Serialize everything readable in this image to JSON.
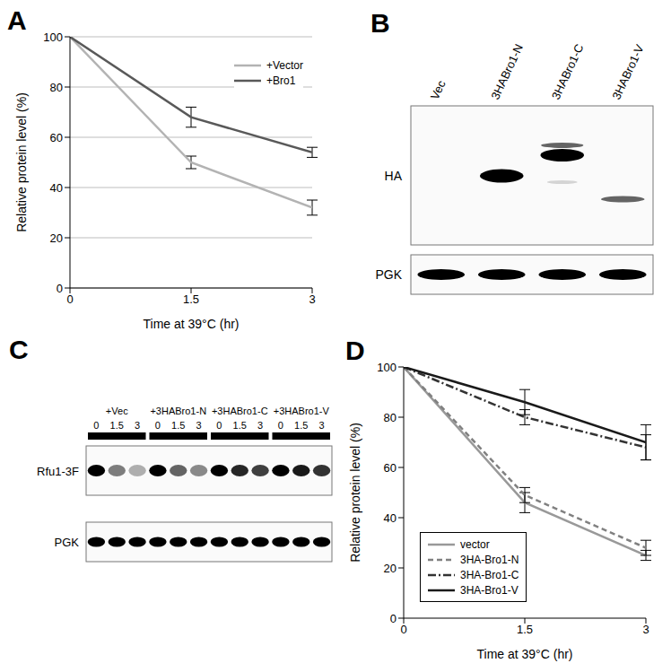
{
  "chart_data": [
    {
      "title": "A",
      "type": "line",
      "x": [
        0,
        1.5,
        3
      ],
      "xlim": [
        0,
        3
      ],
      "xticks": [
        0,
        1.5,
        3
      ],
      "ylim": [
        0,
        100
      ],
      "yticks": [
        0,
        20,
        40,
        60,
        80,
        100
      ],
      "grid": true,
      "x_label": "Time at 39°C (hr)",
      "y_label": "Relative protein level (%)",
      "legend": "upper right",
      "series": [
        {
          "name": "+Vector",
          "color": "#b3b3b3",
          "line_style": "solid",
          "values": [
            100,
            50,
            32
          ],
          "errors": [
            0,
            2.5,
            3
          ]
        },
        {
          "name": "+Bro1",
          "color": "#595959",
          "line_style": "solid",
          "values": [
            100,
            68,
            54
          ],
          "errors": [
            0,
            4,
            2
          ]
        }
      ]
    },
    {
      "title": "D",
      "type": "line",
      "x": [
        0,
        1.5,
        3
      ],
      "xlim": [
        0,
        3
      ],
      "xticks": [
        0,
        1.5,
        3
      ],
      "ylim": [
        0,
        100
      ],
      "yticks": [
        0,
        20,
        40,
        60,
        80,
        100
      ],
      "grid": false,
      "x_label": "Time at 39°C (hr)",
      "y_label": "Relative protein level (%)",
      "legend": "lower left",
      "series": [
        {
          "name": "vector",
          "color": "#999999",
          "line_style": "solid",
          "values": [
            100,
            46,
            25
          ],
          "errors": [
            0,
            4,
            2
          ]
        },
        {
          "name": "3HA-Bro1-N",
          "color": "#808080",
          "line_style": "dashed",
          "values": [
            100,
            49,
            28
          ],
          "errors": [
            0,
            3,
            3
          ]
        },
        {
          "name": "3HA-Bro1-C",
          "color": "#333333",
          "line_style": "dashdot",
          "values": [
            100,
            80,
            68
          ],
          "errors": [
            0,
            3,
            5
          ]
        },
        {
          "name": "3HA-Bro1-V",
          "color": "#1a1a1a",
          "line_style": "solid",
          "values": [
            100,
            86,
            70
          ],
          "errors": [
            0,
            5,
            7
          ]
        }
      ]
    }
  ],
  "blots": [
    {
      "title": "B",
      "lanes": [
        "Vec",
        "3HABro1-N",
        "3HABro1-C",
        "3HABro1-V"
      ],
      "rows": [
        {
          "label": "HA",
          "intensity": [
            0,
            1,
            1,
            0.6
          ]
        },
        {
          "label": "PGK",
          "intensity": [
            1,
            1,
            1,
            1
          ]
        }
      ]
    },
    {
      "title": "C",
      "groups": [
        "+Vec",
        "+3HABro1-N",
        "+3HABro1-C",
        "+3HABro1-V"
      ],
      "times": [
        0,
        1.5,
        3
      ],
      "rows": [
        {
          "label": "Rfu1-3F",
          "intensity": [
            1,
            0.5,
            0.3,
            1,
            0.6,
            0.45,
            1,
            0.85,
            0.75,
            1,
            0.9,
            0.8
          ]
        },
        {
          "label": "PGK",
          "intensity": [
            1,
            1,
            1,
            1,
            1,
            1,
            1,
            1,
            1,
            1,
            1,
            1
          ]
        }
      ]
    }
  ]
}
